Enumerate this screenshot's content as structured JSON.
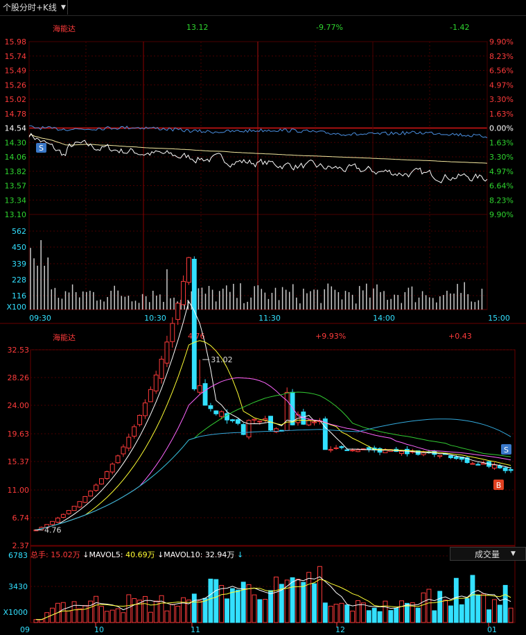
{
  "tab": {
    "label": "个股分时+K线",
    "arrow": "▼"
  },
  "intraday": {
    "name": "海能达",
    "price": "13.12",
    "pct": "-9.77%",
    "change": "-1.42",
    "price_ticks": [
      "15.98",
      "15.74",
      "15.49",
      "15.26",
      "15.02",
      "14.78",
      "14.54",
      "14.30",
      "14.06",
      "13.82",
      "13.57",
      "13.34",
      "13.10"
    ],
    "pct_ticks": [
      "9.90%",
      "8.23%",
      "6.56%",
      "4.97%",
      "3.30%",
      "1.63%",
      "0.00%",
      "1.63%",
      "3.30%",
      "4.97%",
      "6.64%",
      "8.23%",
      "9.90%"
    ],
    "vol_ticks": [
      "562",
      "450",
      "339",
      "228",
      "116"
    ],
    "vol_unit": "X100",
    "time_ticks": [
      "09:30",
      "10:30",
      "11:30",
      "14:00",
      "15:00"
    ],
    "marker": "S"
  },
  "kline": {
    "name": "海能达",
    "price": "4.76",
    "pct": "+9.93%",
    "change": "+0.43",
    "price_ticks": [
      "32.53",
      "28.26",
      "24.00",
      "19.63",
      "15.37",
      "11.00",
      "6.74",
      "2.37"
    ],
    "high_label": "31.02",
    "low_label": "4.76",
    "sell_marker": "S",
    "buy_marker": "B",
    "vol_ticks": [
      "6783",
      "3430"
    ],
    "vol_unit": "X1000",
    "month_ticks": [
      "09",
      "10",
      "11",
      "12",
      "01"
    ]
  },
  "volume_legend": {
    "total_label": "总手:",
    "total_value": "15.02万",
    "ma5_label": "MAVOL5:",
    "ma5_value": "40.69万",
    "ma10_label": "MAVOL10:",
    "ma10_value": "32.94万",
    "down_arrow": "↓"
  },
  "volume_select": {
    "label": "成交量",
    "arrow": "▼"
  },
  "colors": {
    "up": "#ff3b3b",
    "down": "#33e0ff",
    "grid": "#5a0000",
    "ma5": "#ffffff",
    "ma10": "#ffff33",
    "ma20": "#ff66ff",
    "ma30": "#33cc33",
    "ma60": "#33aadd"
  }
}
